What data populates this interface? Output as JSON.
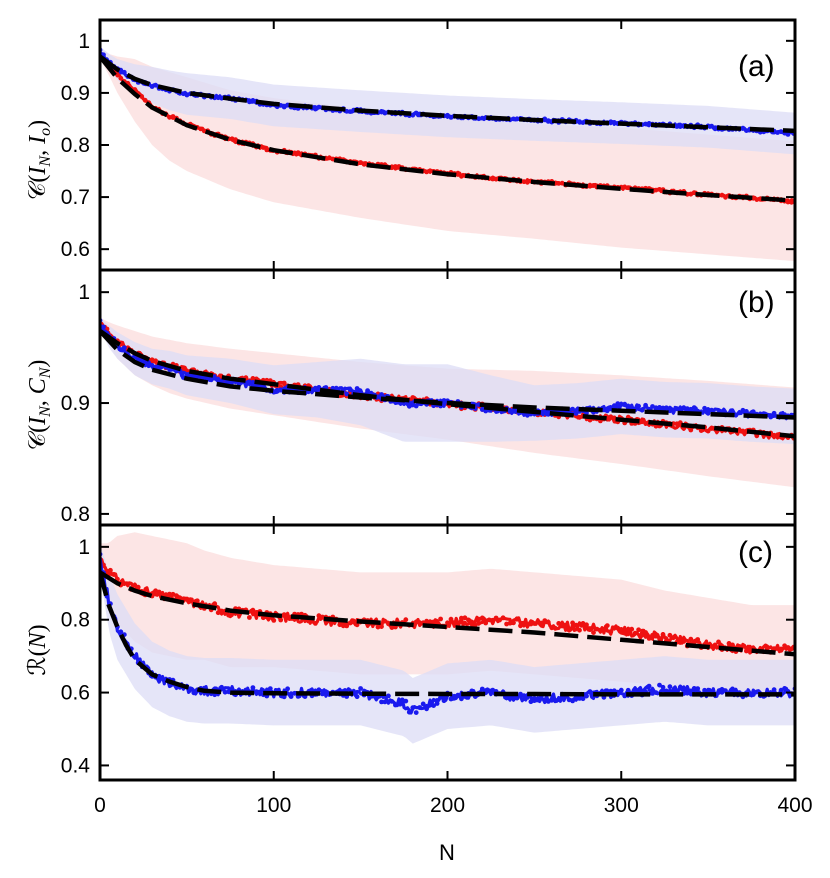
{
  "chart_data": {
    "type": "line",
    "xlabel": "N",
    "xlim": [
      0,
      400
    ],
    "xticks": [
      0,
      100,
      200,
      300,
      400
    ],
    "xtick_labels": [
      "0",
      "100",
      "200",
      "300",
      "400"
    ],
    "colors": {
      "red": "#ee1111",
      "blue": "#1a1aee",
      "fit": "#000000",
      "red_band": "#fbdcdc",
      "blue_band": "#dcdcf6"
    },
    "panels": [
      {
        "id": "a",
        "panel_label": "(a)",
        "ylabel": {
          "func": "𝒞",
          "arg1": "I",
          "sub1": "N",
          "arg2": "I",
          "sub2": "o"
        },
        "ylim": [
          0.56,
          1.04
        ],
        "yticks": [
          0.6,
          0.7,
          0.8,
          0.9,
          1.0
        ],
        "ytick_labels": [
          "0.6",
          "0.7",
          "0.8",
          "0.9",
          "1"
        ],
        "series": [
          {
            "name": "red",
            "color": "#ee1111",
            "x": [
              0,
              5,
              10,
              20,
              30,
              40,
              50,
              75,
              100,
              150,
              200,
              250,
              300,
              350,
              400
            ],
            "y": [
              0.975,
              0.955,
              0.935,
              0.905,
              0.875,
              0.855,
              0.84,
              0.81,
              0.79,
              0.765,
              0.745,
              0.73,
              0.718,
              0.705,
              0.692
            ],
            "band_halfwidth": [
              0.01,
              0.02,
              0.035,
              0.06,
              0.075,
              0.085,
              0.09,
              0.095,
              0.1,
              0.105,
              0.11,
              0.11,
              0.115,
              0.115,
              0.115
            ]
          },
          {
            "name": "blue",
            "color": "#1a1aee",
            "x": [
              0,
              5,
              10,
              20,
              30,
              40,
              50,
              75,
              100,
              150,
              200,
              250,
              300,
              350,
              400
            ],
            "y": [
              0.98,
              0.96,
              0.945,
              0.925,
              0.915,
              0.905,
              0.898,
              0.89,
              0.876,
              0.865,
              0.855,
              0.848,
              0.842,
              0.835,
              0.822
            ],
            "band_halfwidth": [
              0.01,
              0.015,
              0.02,
              0.03,
              0.035,
              0.038,
              0.04,
              0.04,
              0.04,
              0.04,
              0.04,
              0.04,
              0.04,
              0.04,
              0.04
            ]
          }
        ],
        "fits": [
          {
            "x": [
              0,
              10,
              20,
              30,
              50,
              75,
              100,
              150,
              200,
              250,
              300,
              350,
              400
            ],
            "y": [
              0.97,
              0.928,
              0.898,
              0.872,
              0.838,
              0.81,
              0.79,
              0.763,
              0.744,
              0.729,
              0.716,
              0.704,
              0.693
            ]
          },
          {
            "x": [
              0,
              10,
              20,
              30,
              50,
              75,
              100,
              150,
              200,
              250,
              300,
              350,
              400
            ],
            "y": [
              0.97,
              0.945,
              0.927,
              0.915,
              0.9,
              0.889,
              0.879,
              0.866,
              0.856,
              0.848,
              0.841,
              0.834,
              0.827
            ]
          }
        ]
      },
      {
        "id": "b",
        "panel_label": "(b)",
        "ylabel": {
          "func": "𝒞",
          "arg1": "I",
          "sub1": "N",
          "arg2": "C",
          "sub2": "N"
        },
        "ylim": [
          0.79,
          1.02
        ],
        "yticks": [
          0.8,
          0.9,
          1.0
        ],
        "ytick_labels": [
          "0.8",
          "0.9",
          "1"
        ],
        "series": [
          {
            "name": "red",
            "color": "#ee1111",
            "x": [
              0,
              5,
              10,
              20,
              30,
              40,
              50,
              75,
              100,
              150,
              200,
              250,
              300,
              350,
              400
            ],
            "y": [
              0.972,
              0.963,
              0.955,
              0.945,
              0.938,
              0.933,
              0.929,
              0.922,
              0.917,
              0.907,
              0.899,
              0.892,
              0.885,
              0.877,
              0.869
            ],
            "band_halfwidth": [
              0.005,
              0.01,
              0.015,
              0.02,
              0.022,
              0.024,
              0.025,
              0.027,
              0.028,
              0.03,
              0.032,
              0.037,
              0.04,
              0.043,
              0.045
            ]
          },
          {
            "name": "blue",
            "color": "#1a1aee",
            "x": [
              0,
              5,
              10,
              20,
              30,
              40,
              50,
              75,
              100,
              125,
              150,
              175,
              200,
              225,
              250,
              275,
              300,
              325,
              350,
              375,
              400
            ],
            "y": [
              0.972,
              0.96,
              0.952,
              0.94,
              0.933,
              0.93,
              0.925,
              0.92,
              0.912,
              0.912,
              0.91,
              0.9,
              0.9,
              0.895,
              0.891,
              0.893,
              0.897,
              0.894,
              0.893,
              0.89,
              0.888
            ],
            "band_halfwidth": [
              0.005,
              0.01,
              0.012,
              0.015,
              0.016,
              0.017,
              0.018,
              0.02,
              0.022,
              0.025,
              0.03,
              0.035,
              0.035,
              0.03,
              0.025,
              0.025,
              0.025,
              0.025,
              0.025,
              0.025,
              0.025
            ]
          }
        ],
        "fits": [
          {
            "x": [
              0,
              10,
              20,
              30,
              50,
              75,
              100,
              150,
              200,
              250,
              300,
              350,
              400
            ],
            "y": [
              0.965,
              0.954,
              0.945,
              0.938,
              0.929,
              0.922,
              0.917,
              0.907,
              0.899,
              0.892,
              0.885,
              0.878,
              0.87
            ]
          },
          {
            "x": [
              0,
              10,
              20,
              30,
              50,
              75,
              100,
              150,
              200,
              250,
              300,
              350,
              400
            ],
            "y": [
              0.965,
              0.948,
              0.937,
              0.93,
              0.922,
              0.915,
              0.911,
              0.905,
              0.9,
              0.896,
              0.893,
              0.89,
              0.887
            ]
          }
        ]
      },
      {
        "id": "c",
        "panel_label": "(c)",
        "ylabel": {
          "func": "ℛ",
          "arg1": "N"
        },
        "ylim": [
          0.36,
          1.06
        ],
        "yticks": [
          0.4,
          0.6,
          0.8,
          1.0
        ],
        "ytick_labels": [
          "0.4",
          "0.6",
          "0.8",
          "1"
        ],
        "series": [
          {
            "name": "red",
            "color": "#ee1111",
            "x": [
              0,
              5,
              10,
              20,
              30,
              40,
              50,
              60,
              75,
              100,
              125,
              150,
              175,
              200,
              225,
              250,
              275,
              300,
              325,
              350,
              375,
              400
            ],
            "y": [
              0.97,
              0.93,
              0.91,
              0.89,
              0.87,
              0.86,
              0.85,
              0.84,
              0.82,
              0.81,
              0.8,
              0.79,
              0.79,
              0.79,
              0.8,
              0.79,
              0.78,
              0.77,
              0.75,
              0.73,
              0.72,
              0.72
            ],
            "band_halfwidth": [
              0.04,
              0.08,
              0.12,
              0.15,
              0.16,
              0.16,
              0.16,
              0.15,
              0.15,
              0.14,
              0.14,
              0.14,
              0.14,
              0.14,
              0.14,
              0.14,
              0.14,
              0.14,
              0.13,
              0.13,
              0.12,
              0.12
            ]
          },
          {
            "name": "blue",
            "color": "#1a1aee",
            "x": [
              0,
              5,
              10,
              20,
              30,
              40,
              50,
              60,
              75,
              100,
              125,
              150,
              175,
              180,
              200,
              225,
              250,
              275,
              300,
              325,
              350,
              375,
              400
            ],
            "y": [
              0.97,
              0.85,
              0.78,
              0.7,
              0.65,
              0.625,
              0.61,
              0.605,
              0.605,
              0.6,
              0.6,
              0.6,
              0.57,
              0.55,
              0.59,
              0.6,
              0.58,
              0.59,
              0.6,
              0.61,
              0.6,
              0.6,
              0.6
            ],
            "band_halfwidth": [
              0.04,
              0.08,
              0.09,
              0.09,
              0.09,
              0.09,
              0.09,
              0.09,
              0.09,
              0.09,
              0.09,
              0.09,
              0.09,
              0.09,
              0.09,
              0.09,
              0.09,
              0.09,
              0.09,
              0.09,
              0.09,
              0.09,
              0.09
            ]
          }
        ],
        "fits": [
          {
            "x": [
              0,
              10,
              20,
              30,
              50,
              75,
              100,
              150,
              200,
              250,
              300,
              350,
              400
            ],
            "y": [
              0.93,
              0.9,
              0.88,
              0.865,
              0.845,
              0.825,
              0.812,
              0.795,
              0.78,
              0.765,
              0.745,
              0.725,
              0.705
            ]
          },
          {
            "x": [
              0,
              5,
              10,
              15,
              20,
              30,
              40,
              50,
              60,
              75,
              100,
              150,
              200,
              250,
              300,
              350,
              400
            ],
            "y": [
              0.93,
              0.84,
              0.78,
              0.73,
              0.69,
              0.65,
              0.63,
              0.615,
              0.605,
              0.6,
              0.598,
              0.597,
              0.596,
              0.596,
              0.595,
              0.595,
              0.595
            ]
          }
        ]
      }
    ]
  }
}
